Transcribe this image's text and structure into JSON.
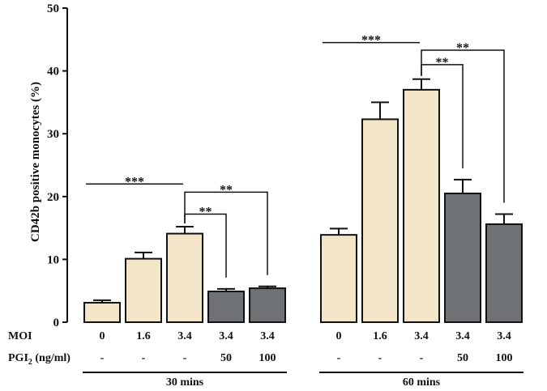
{
  "chart_data": {
    "type": "bar",
    "title": "",
    "xlabel": "",
    "ylabel": "CD42b positive monocytes (%)",
    "ylim": [
      0,
      50
    ],
    "yticks": [
      "0",
      "10",
      "20",
      "30",
      "40",
      "50"
    ],
    "row_labels": {
      "moi": "MOI",
      "pgi_prefix": "PGI",
      "pgi_sub": "2",
      "pgi_suffix": " (ng/ml)"
    },
    "colors": {
      "control": "#f3e6c8",
      "treated": "#6f7275",
      "axis": "#111111"
    },
    "groups": [
      {
        "label": "30 mins",
        "bars": [
          {
            "moi": "0",
            "pgi": "-",
            "value": 3.1,
            "error": 0.4,
            "treated": false
          },
          {
            "moi": "1.6",
            "pgi": "-",
            "value": 10.1,
            "error": 1.0,
            "treated": false
          },
          {
            "moi": "3.4",
            "pgi": "-",
            "value": 14.1,
            "error": 1.1,
            "treated": false
          },
          {
            "moi": "3.4",
            "pgi": "50",
            "value": 4.9,
            "error": 0.4,
            "treated": true
          },
          {
            "moi": "3.4",
            "pgi": "100",
            "value": 5.4,
            "error": 0.3,
            "treated": true
          }
        ]
      },
      {
        "label": "60 mins",
        "bars": [
          {
            "moi": "0",
            "pgi": "-",
            "value": 13.9,
            "error": 1.0,
            "treated": false
          },
          {
            "moi": "1.6",
            "pgi": "-",
            "value": 32.3,
            "error": 2.7,
            "treated": false
          },
          {
            "moi": "3.4",
            "pgi": "-",
            "value": 37.0,
            "error": 1.7,
            "treated": false
          },
          {
            "moi": "3.4",
            "pgi": "50",
            "value": 20.5,
            "error": 2.2,
            "treated": true
          },
          {
            "moi": "3.4",
            "pgi": "100",
            "value": 15.6,
            "error": 1.6,
            "treated": true
          }
        ]
      }
    ],
    "significance": [
      {
        "group": 0,
        "type": "line",
        "from": 0,
        "to": 2,
        "y": 22.0,
        "label": "***"
      },
      {
        "group": 0,
        "type": "bracket",
        "from": 2,
        "to": 3,
        "y": 17.2,
        "label": "**"
      },
      {
        "group": 0,
        "type": "bracket",
        "from": 2,
        "to": 4,
        "y": 20.7,
        "label": "**"
      },
      {
        "group": 1,
        "type": "line",
        "from": 0,
        "to": 2,
        "y": 44.5,
        "label": "***"
      },
      {
        "group": 1,
        "type": "bracket",
        "from": 2,
        "to": 3,
        "y": 41.0,
        "label": "**"
      },
      {
        "group": 1,
        "type": "bracket",
        "from": 2,
        "to": 4,
        "y": 43.3,
        "label": "**"
      }
    ]
  }
}
